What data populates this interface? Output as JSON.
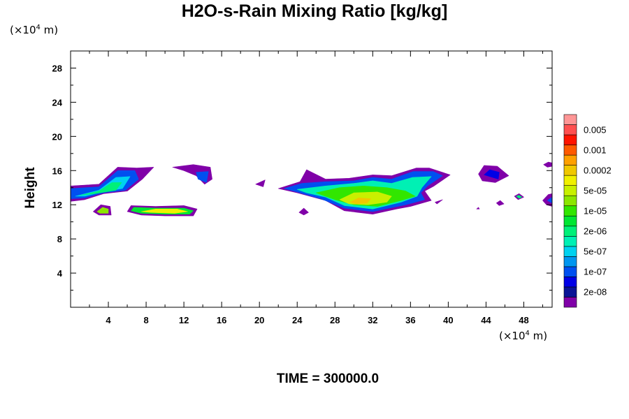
{
  "chart_data": {
    "type": "heatmap",
    "title": "H2O-s-Rain Mixing Ratio [kg/kg]",
    "ylabel": "Height",
    "xlabel": "",
    "x_unit": {
      "prefix": "(×10",
      "exp": "4",
      "suffix": " m)"
    },
    "y_unit": {
      "prefix": "(×10",
      "exp": "4",
      "suffix": " m)"
    },
    "xlim": [
      0,
      51
    ],
    "ylim": [
      0,
      30
    ],
    "x_ticks": [
      4,
      8,
      12,
      16,
      20,
      24,
      28,
      32,
      36,
      40,
      44,
      48
    ],
    "y_ticks": [
      4,
      8,
      12,
      16,
      20,
      24,
      28
    ],
    "legend": {
      "position": "right",
      "levels": [
        {
          "color": "#8000a8"
        },
        {
          "label": "2e-08",
          "color": "#0a1496"
        },
        {
          "color": "#0000e6"
        },
        {
          "label": "1e-07",
          "color": "#0050f0"
        },
        {
          "color": "#0096f0"
        },
        {
          "label": "5e-07",
          "color": "#00d2f0"
        },
        {
          "color": "#00f0b4"
        },
        {
          "label": "2e-06",
          "color": "#00f078"
        },
        {
          "color": "#00e632"
        },
        {
          "label": "1e-05",
          "color": "#32e600"
        },
        {
          "color": "#8ce600"
        },
        {
          "label": "5e-05",
          "color": "#c8f000"
        },
        {
          "color": "#f0f000"
        },
        {
          "label": "0.0002",
          "color": "#f0c800"
        },
        {
          "color": "#ffa000"
        },
        {
          "label": "0.001",
          "color": "#ff5a00"
        },
        {
          "color": "#ff1400"
        },
        {
          "label": "0.005",
          "color": "#ff5050"
        },
        {
          "color": "#ff9696"
        }
      ]
    },
    "regions": [
      {
        "level": 0,
        "points": [
          [
            0,
            12.4
          ],
          [
            0,
            14.2
          ],
          [
            3,
            14.4
          ],
          [
            5,
            16.4
          ],
          [
            7,
            16.3
          ],
          [
            8.8,
            16.4
          ],
          [
            7.6,
            15
          ],
          [
            6,
            13.6
          ],
          [
            3.5,
            13.3
          ],
          [
            1.5,
            12.6
          ]
        ]
      },
      {
        "level": 3,
        "points": [
          [
            0,
            12.7
          ],
          [
            0,
            13.9
          ],
          [
            3,
            14.1
          ],
          [
            5,
            16
          ],
          [
            6.8,
            16
          ],
          [
            7.2,
            15
          ],
          [
            5.8,
            13.7
          ],
          [
            3.5,
            13.4
          ],
          [
            1.5,
            12.8
          ]
        ]
      },
      {
        "level": 5,
        "points": [
          [
            0.5,
            13
          ],
          [
            3,
            13.7
          ],
          [
            4.8,
            15.2
          ],
          [
            6.3,
            15.3
          ],
          [
            5.5,
            13.9
          ],
          [
            3.3,
            13.5
          ],
          [
            1.5,
            13
          ]
        ]
      },
      {
        "level": 7,
        "points": [
          [
            1,
            13.1
          ],
          [
            3,
            13.6
          ],
          [
            4.4,
            14.6
          ],
          [
            5.4,
            14.6
          ],
          [
            4.8,
            13.7
          ],
          [
            2.5,
            13.3
          ]
        ]
      },
      {
        "level": 0,
        "points": [
          [
            10.8,
            16.4
          ],
          [
            13,
            16.7
          ],
          [
            14.8,
            16.4
          ],
          [
            15,
            15
          ],
          [
            14.2,
            14.4
          ],
          [
            13.3,
            15.4
          ],
          [
            12,
            16
          ]
        ]
      },
      {
        "level": 3,
        "points": [
          [
            13.3,
            15.8
          ],
          [
            14.6,
            15.9
          ],
          [
            14.4,
            14.6
          ],
          [
            13.5,
            15
          ]
        ]
      },
      {
        "level": 0,
        "points": [
          [
            19.6,
            14.4
          ],
          [
            20.6,
            14.9
          ],
          [
            20.4,
            14.1
          ]
        ]
      },
      {
        "level": 0,
        "points": [
          [
            2.4,
            11.2
          ],
          [
            3.2,
            12
          ],
          [
            4.2,
            11.8
          ],
          [
            4.3,
            10.8
          ],
          [
            3,
            10.8
          ]
        ]
      },
      {
        "level": 10,
        "points": [
          [
            2.8,
            11.2
          ],
          [
            3.4,
            11.7
          ],
          [
            4,
            11.5
          ],
          [
            4,
            11
          ],
          [
            3.1,
            11
          ]
        ]
      },
      {
        "level": 0,
        "points": [
          [
            6,
            11.2
          ],
          [
            6.4,
            11.9
          ],
          [
            9,
            11.8
          ],
          [
            12,
            11.9
          ],
          [
            13.4,
            11.5
          ],
          [
            13,
            10.7
          ],
          [
            10,
            10.7
          ],
          [
            7.5,
            10.8
          ]
        ]
      },
      {
        "level": 8,
        "points": [
          [
            6.4,
            11.3
          ],
          [
            6.7,
            11.7
          ],
          [
            9,
            11.6
          ],
          [
            12,
            11.6
          ],
          [
            13,
            11.3
          ],
          [
            12.6,
            10.9
          ],
          [
            10,
            10.9
          ],
          [
            7.5,
            11
          ]
        ]
      },
      {
        "level": 12,
        "points": [
          [
            7.5,
            11.2
          ],
          [
            9,
            11.5
          ],
          [
            11.3,
            11.5
          ],
          [
            12.4,
            11.2
          ],
          [
            11,
            11
          ],
          [
            8.5,
            11.1
          ]
        ]
      },
      {
        "level": 0,
        "points": [
          [
            24.2,
            11.1
          ],
          [
            24.7,
            11.6
          ],
          [
            25.2,
            11.1
          ],
          [
            24.7,
            10.8
          ]
        ]
      },
      {
        "level": 0,
        "points": [
          [
            22,
            13.9
          ],
          [
            24.3,
            14.7
          ],
          [
            25,
            16.1
          ],
          [
            27,
            15
          ],
          [
            29.5,
            15.1
          ],
          [
            32,
            15.5
          ],
          [
            34,
            15.4
          ],
          [
            36.6,
            16.3
          ],
          [
            38,
            16.3
          ],
          [
            40.2,
            15.5
          ],
          [
            38.5,
            14.2
          ],
          [
            37.5,
            13.6
          ],
          [
            38.2,
            12.5
          ],
          [
            36,
            11.8
          ],
          [
            34.5,
            11.5
          ],
          [
            32,
            10.9
          ],
          [
            29,
            11.3
          ],
          [
            27,
            12.5
          ],
          [
            24,
            13.4
          ]
        ]
      },
      {
        "level": 3,
        "points": [
          [
            22.6,
            13.9
          ],
          [
            24.5,
            14.5
          ],
          [
            27,
            14.7
          ],
          [
            30,
            14.8
          ],
          [
            32,
            15.2
          ],
          [
            34,
            15
          ],
          [
            36.3,
            15.9
          ],
          [
            38.4,
            15.9
          ],
          [
            39.4,
            15.4
          ],
          [
            37.8,
            14.2
          ],
          [
            37.1,
            13.4
          ],
          [
            37.5,
            12.6
          ],
          [
            35.5,
            12
          ],
          [
            32,
            11.2
          ],
          [
            29,
            11.6
          ],
          [
            26.5,
            12.7
          ],
          [
            24,
            13.5
          ]
        ]
      },
      {
        "level": 6,
        "points": [
          [
            24,
            13.8
          ],
          [
            27,
            14.2
          ],
          [
            30,
            14.5
          ],
          [
            32,
            14.8
          ],
          [
            34,
            14.5
          ],
          [
            36.2,
            15.2
          ],
          [
            38.2,
            15.3
          ],
          [
            37.2,
            14
          ],
          [
            36.7,
            13
          ],
          [
            35,
            12.3
          ],
          [
            32,
            11.5
          ],
          [
            29,
            11.9
          ],
          [
            27,
            12.9
          ],
          [
            25,
            13.4
          ]
        ]
      },
      {
        "level": 9,
        "points": [
          [
            26,
            13.4
          ],
          [
            28.5,
            14
          ],
          [
            31,
            14.2
          ],
          [
            33.5,
            14
          ],
          [
            35.5,
            13.6
          ],
          [
            36.5,
            13
          ],
          [
            35,
            12.5
          ],
          [
            32.5,
            11.8
          ],
          [
            30,
            12
          ],
          [
            28,
            12.6
          ]
        ]
      },
      {
        "level": 11,
        "points": [
          [
            28.5,
            12.6
          ],
          [
            30,
            13.4
          ],
          [
            32.5,
            13.5
          ],
          [
            34,
            13
          ],
          [
            33.5,
            12.3
          ],
          [
            31.5,
            12
          ],
          [
            29.5,
            12.1
          ]
        ]
      },
      {
        "level": 13,
        "points": [
          [
            29.6,
            12.3
          ],
          [
            30.5,
            12.8
          ],
          [
            31.8,
            12.7
          ],
          [
            31.4,
            12.2
          ],
          [
            30.3,
            12.1
          ]
        ]
      },
      {
        "level": 0,
        "points": [
          [
            38.6,
            12.3
          ],
          [
            39.4,
            12.6
          ],
          [
            38.8,
            12.1
          ]
        ]
      },
      {
        "level": 0,
        "points": [
          [
            43.2,
            15.6
          ],
          [
            43.8,
            16.6
          ],
          [
            45.2,
            16.5
          ],
          [
            46.4,
            15.4
          ],
          [
            45,
            14.6
          ],
          [
            43.6,
            14.8
          ]
        ]
      },
      {
        "level": 2,
        "points": [
          [
            43.8,
            15.5
          ],
          [
            44.4,
            16.1
          ],
          [
            45.4,
            15.8
          ],
          [
            45.3,
            15
          ]
        ]
      },
      {
        "level": 0,
        "points": [
          [
            45.1,
            12.2
          ],
          [
            45.5,
            12.5
          ],
          [
            45.9,
            12.1
          ],
          [
            45.4,
            11.9
          ]
        ]
      },
      {
        "level": 0,
        "points": [
          [
            47,
            13
          ],
          [
            47.5,
            13.3
          ],
          [
            48,
            12.9
          ],
          [
            47.4,
            12.6
          ]
        ]
      },
      {
        "level": 7,
        "points": [
          [
            47.2,
            13
          ],
          [
            47.5,
            13.1
          ],
          [
            47.8,
            12.9
          ],
          [
            47.5,
            12.75
          ]
        ]
      },
      {
        "level": 0,
        "points": [
          [
            50.1,
            16.7
          ],
          [
            50.6,
            17
          ],
          [
            51,
            16.9
          ],
          [
            51,
            16.5
          ],
          [
            50.5,
            16.4
          ]
        ]
      },
      {
        "level": 0,
        "points": [
          [
            50,
            12.5
          ],
          [
            50.6,
            13.2
          ],
          [
            51,
            13.3
          ],
          [
            51,
            11.8
          ],
          [
            50.4,
            12
          ]
        ]
      },
      {
        "level": 3,
        "points": [
          [
            50.5,
            12.5
          ],
          [
            51,
            12.9
          ],
          [
            51,
            12.2
          ]
        ]
      },
      {
        "level": 0,
        "points": [
          [
            43,
            11.5
          ],
          [
            43.2,
            11.7
          ],
          [
            43.3,
            11.5
          ]
        ]
      }
    ]
  },
  "footer": {
    "time_label": "TIME = 300000.0"
  }
}
